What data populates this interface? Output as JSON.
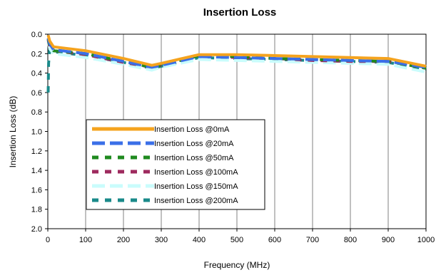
{
  "chart_data": {
    "type": "line",
    "title": "Insertion Loss",
    "xlabel": "Frequency (MHz)",
    "ylabel": "Insertion Loss (dB)",
    "xlim": [
      0,
      1000
    ],
    "ylim": [
      0.0,
      2.0
    ],
    "y_inverted": true,
    "xticks": [
      "0",
      "100",
      "200",
      "300",
      "400",
      "500",
      "600",
      "700",
      "800",
      "900",
      "1000"
    ],
    "yticks": [
      "0.0",
      "0.2",
      "0.4",
      "0.6",
      "0.8",
      "1.0",
      "1.2",
      "1.4",
      "1.6",
      "1.8",
      "2.0"
    ],
    "grid": "vertical",
    "legend_position": "lower-left",
    "series": [
      {
        "name": "Insertion Loss @0mA",
        "color": "#F5A31E",
        "dash": "solid",
        "points": [
          [
            1,
            0.01
          ],
          [
            5,
            0.07
          ],
          [
            15,
            0.13
          ],
          [
            100,
            0.17
          ],
          [
            200,
            0.25
          ],
          [
            275,
            0.32
          ],
          [
            300,
            0.3
          ],
          [
            400,
            0.21
          ],
          [
            500,
            0.21
          ],
          [
            600,
            0.22
          ],
          [
            700,
            0.23
          ],
          [
            800,
            0.24
          ],
          [
            900,
            0.25
          ],
          [
            1000,
            0.33
          ]
        ]
      },
      {
        "name": "Insertion Loss @20mA",
        "color": "#3B6FE8",
        "dash": "long",
        "points": [
          [
            1,
            0.04
          ],
          [
            5,
            0.1
          ],
          [
            15,
            0.16
          ],
          [
            100,
            0.2
          ],
          [
            200,
            0.28
          ],
          [
            275,
            0.34
          ],
          [
            300,
            0.32
          ],
          [
            400,
            0.23
          ],
          [
            500,
            0.24
          ],
          [
            600,
            0.25
          ],
          [
            700,
            0.26
          ],
          [
            800,
            0.27
          ],
          [
            900,
            0.28
          ],
          [
            1000,
            0.34
          ]
        ]
      },
      {
        "name": "Insertion Loss @50mA",
        "color": "#1F8A1F",
        "dash": "dash",
        "points": [
          [
            1,
            0.05
          ],
          [
            5,
            0.12
          ],
          [
            15,
            0.17
          ],
          [
            100,
            0.2
          ],
          [
            200,
            0.28
          ],
          [
            275,
            0.34
          ],
          [
            300,
            0.32
          ],
          [
            400,
            0.22
          ],
          [
            500,
            0.23
          ],
          [
            600,
            0.25
          ],
          [
            700,
            0.26
          ],
          [
            800,
            0.27
          ],
          [
            900,
            0.28
          ],
          [
            1000,
            0.35
          ]
        ]
      },
      {
        "name": "Insertion Loss @100mA",
        "color": "#9E2A5E",
        "dash": "dash",
        "points": [
          [
            1,
            0.06
          ],
          [
            5,
            0.13
          ],
          [
            15,
            0.17
          ],
          [
            100,
            0.21
          ],
          [
            200,
            0.29
          ],
          [
            275,
            0.34
          ],
          [
            300,
            0.32
          ],
          [
            400,
            0.22
          ],
          [
            500,
            0.24
          ],
          [
            600,
            0.25
          ],
          [
            700,
            0.27
          ],
          [
            800,
            0.28
          ],
          [
            900,
            0.28
          ],
          [
            1000,
            0.35
          ]
        ]
      },
      {
        "name": "Insertion Loss @150mA",
        "color": "#C9FCFC",
        "dash": "long",
        "points": [
          [
            1,
            0.08
          ],
          [
            5,
            0.15
          ],
          [
            15,
            0.2
          ],
          [
            100,
            0.24
          ],
          [
            200,
            0.31
          ],
          [
            275,
            0.37
          ],
          [
            300,
            0.34
          ],
          [
            400,
            0.26
          ],
          [
            500,
            0.27
          ],
          [
            600,
            0.28
          ],
          [
            700,
            0.29
          ],
          [
            800,
            0.3
          ],
          [
            900,
            0.31
          ],
          [
            1000,
            0.39
          ]
        ]
      },
      {
        "name": "Insertion Loss @200mA",
        "color": "#1A8A8A",
        "dash": "dash",
        "points": [
          [
            1,
            0.6
          ],
          [
            2,
            0.3
          ],
          [
            5,
            0.15
          ],
          [
            15,
            0.18
          ],
          [
            100,
            0.22
          ],
          [
            200,
            0.29
          ],
          [
            275,
            0.35
          ],
          [
            300,
            0.33
          ],
          [
            400,
            0.24
          ],
          [
            500,
            0.25
          ],
          [
            600,
            0.26
          ],
          [
            700,
            0.27
          ],
          [
            800,
            0.28
          ],
          [
            900,
            0.29
          ],
          [
            1000,
            0.36
          ]
        ]
      }
    ]
  }
}
